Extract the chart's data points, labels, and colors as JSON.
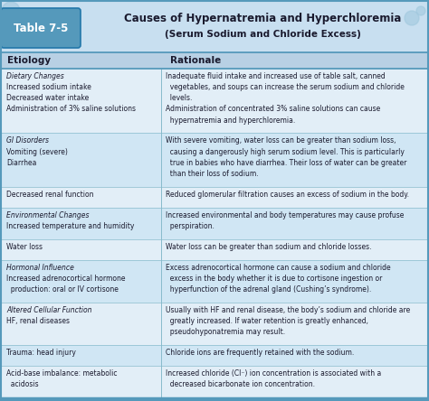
{
  "title_line1": "Causes of Hypernatremia and Hyperchloremia",
  "title_line2": "(Serum Sodium and Chloride Excess)",
  "table_label": "Table 7-5",
  "col_headers": [
    "Etiology",
    "Rationale"
  ],
  "bg_color": "#c8e0ee",
  "title_bg": "#c8dff0",
  "header_bg": "#b8d0e4",
  "border_color": "#5599bb",
  "divider_color": "#88bbcc",
  "row_bg_even": "#e2eef7",
  "row_bg_odd": "#d0e6f4",
  "text_color": "#1a1a2e",
  "label_box_color": "#5599bb",
  "rows": [
    {
      "etiology_lines": [
        "Dietary Changes",
        "Increased sodium intake",
        "Decreased water intake",
        "Administration of 3% saline solutions"
      ],
      "etiology_italic": [
        true,
        false,
        false,
        false
      ],
      "rationale_lines": [
        "Inadequate fluid intake and increased use of table salt, canned",
        "  vegetables, and soups can increase the serum sodium and chloride",
        "  levels.",
        "Administration of concentrated 3% saline solutions can cause",
        "  hypernatremia and hyperchloremia."
      ]
    },
    {
      "etiology_lines": [
        "GI Disorders",
        "Vomiting (severe)",
        "Diarrhea"
      ],
      "etiology_italic": [
        true,
        false,
        false
      ],
      "rationale_lines": [
        "With severe vomiting, water loss can be greater than sodium loss,",
        "  causing a dangerously high serum sodium level. This is particularly",
        "  true in babies who have diarrhea. Their loss of water can be greater",
        "  than their loss of sodium."
      ]
    },
    {
      "etiology_lines": [
        "Decreased renal function"
      ],
      "etiology_italic": [
        false
      ],
      "rationale_lines": [
        "Reduced glomerular filtration causes an excess of sodium in the body."
      ]
    },
    {
      "etiology_lines": [
        "Environmental Changes",
        "Increased temperature and humidity"
      ],
      "etiology_italic": [
        true,
        false
      ],
      "rationale_lines": [
        "Increased environmental and body temperatures may cause profuse",
        "  perspiration."
      ]
    },
    {
      "etiology_lines": [
        "Water loss"
      ],
      "etiology_italic": [
        false
      ],
      "rationale_lines": [
        "Water loss can be greater than sodium and chloride losses."
      ]
    },
    {
      "etiology_lines": [
        "Hormonal Influence",
        "Increased adrenocortical hormone",
        "  production: oral or IV cortisone"
      ],
      "etiology_italic": [
        true,
        false,
        false
      ],
      "rationale_lines": [
        "Excess adrenocortical hormone can cause a sodium and chloride",
        "  excess in the body whether it is due to cortisone ingestion or",
        "  hyperfunction of the adrenal gland (Cushing’s syndrome)."
      ]
    },
    {
      "etiology_lines": [
        "Altered Cellular Function",
        "HF, renal diseases"
      ],
      "etiology_italic": [
        true,
        false
      ],
      "rationale_lines": [
        "Usually with HF and renal disease, the body’s sodium and chloride are",
        "  greatly increased. If water retention is greatly enhanced,",
        "  pseudohyponatremia may result."
      ]
    },
    {
      "etiology_lines": [
        "Trauma: head injury"
      ],
      "etiology_italic": [
        false
      ],
      "rationale_lines": [
        "Chloride ions are frequently retained with the sodium."
      ]
    },
    {
      "etiology_lines": [
        "Acid-base imbalance: metabolic",
        "  acidosis"
      ],
      "etiology_italic": [
        false,
        false
      ],
      "rationale_lines": [
        "Increased chloride (Cl⁻) ion concentration is associated with a",
        "  decreased bicarbonate ion concentration."
      ]
    }
  ]
}
